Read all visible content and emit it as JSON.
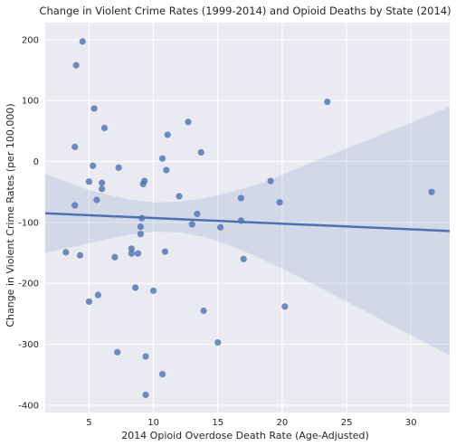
{
  "chart_data": {
    "type": "scatter",
    "title": "Change in Violent Crime Rates (1999-2014) and Opioid Deaths by State (2014)",
    "xlabel": "2014 Opioid Overdose Death Rate (Age-Adjusted)",
    "ylabel": "Change in Violent Crime Rates (per 100,000)",
    "xlim": [
      1.6,
      33.0
    ],
    "ylim": [
      -412,
      228
    ],
    "xticks": [
      5,
      10,
      15,
      20,
      25,
      30
    ],
    "yticks": [
      -400,
      -300,
      -200,
      -100,
      0,
      100,
      200
    ],
    "grid": true,
    "colors": {
      "background": "#eaeaf2",
      "grid": "#ffffff",
      "points": "#4c72b0",
      "line": "#4c72b0",
      "band": "#4c72b0"
    },
    "points": [
      {
        "x": 4.5,
        "y": 197
      },
      {
        "x": 4.0,
        "y": 158
      },
      {
        "x": 5.4,
        "y": 87
      },
      {
        "x": 6.2,
        "y": 55
      },
      {
        "x": 3.9,
        "y": 24
      },
      {
        "x": 5.3,
        "y": -7
      },
      {
        "x": 7.3,
        "y": -10
      },
      {
        "x": 5.0,
        "y": -33
      },
      {
        "x": 6.0,
        "y": -35
      },
      {
        "x": 6.0,
        "y": -45
      },
      {
        "x": 5.6,
        "y": -63
      },
      {
        "x": 3.9,
        "y": -72
      },
      {
        "x": 9.3,
        "y": -32
      },
      {
        "x": 9.2,
        "y": -37
      },
      {
        "x": 10.7,
        "y": 5
      },
      {
        "x": 11.1,
        "y": 44
      },
      {
        "x": 12.7,
        "y": 65
      },
      {
        "x": 13.7,
        "y": 15
      },
      {
        "x": 11.0,
        "y": -14
      },
      {
        "x": 12.0,
        "y": -57
      },
      {
        "x": 13.4,
        "y": -86
      },
      {
        "x": 9.1,
        "y": -93
      },
      {
        "x": 13.0,
        "y": -103
      },
      {
        "x": 9.0,
        "y": -107
      },
      {
        "x": 9.0,
        "y": -119
      },
      {
        "x": 8.3,
        "y": -143
      },
      {
        "x": 8.3,
        "y": -151
      },
      {
        "x": 8.8,
        "y": -151
      },
      {
        "x": 7.0,
        "y": -157
      },
      {
        "x": 10.9,
        "y": -148
      },
      {
        "x": 3.2,
        "y": -149
      },
      {
        "x": 4.3,
        "y": -154
      },
      {
        "x": 8.6,
        "y": -207
      },
      {
        "x": 10.0,
        "y": -212
      },
      {
        "x": 5.7,
        "y": -219
      },
      {
        "x": 5.0,
        "y": -230
      },
      {
        "x": 13.9,
        "y": -245
      },
      {
        "x": 7.2,
        "y": -313
      },
      {
        "x": 9.4,
        "y": -320
      },
      {
        "x": 15.0,
        "y": -297
      },
      {
        "x": 10.7,
        "y": -349
      },
      {
        "x": 9.4,
        "y": -383
      },
      {
        "x": 16.8,
        "y": -60
      },
      {
        "x": 16.8,
        "y": -97
      },
      {
        "x": 15.2,
        "y": -108
      },
      {
        "x": 17.0,
        "y": -160
      },
      {
        "x": 19.1,
        "y": -32
      },
      {
        "x": 19.8,
        "y": -67
      },
      {
        "x": 20.2,
        "y": -238
      },
      {
        "x": 23.5,
        "y": 98
      },
      {
        "x": 31.6,
        "y": -50
      }
    ],
    "regression": {
      "x": [
        1.6,
        33.0
      ],
      "y": [
        -85,
        -114
      ]
    },
    "ci_band": [
      {
        "x": 1.6,
        "low": -150,
        "high": -20
      },
      {
        "x": 5.0,
        "low": -134,
        "high": -47
      },
      {
        "x": 8.0,
        "low": -120,
        "high": -62
      },
      {
        "x": 10.0,
        "low": -115,
        "high": -67
      },
      {
        "x": 12.0,
        "low": -116,
        "high": -66
      },
      {
        "x": 14.0,
        "low": -124,
        "high": -60
      },
      {
        "x": 16.0,
        "low": -138,
        "high": -50
      },
      {
        "x": 18.0,
        "low": -156,
        "high": -38
      },
      {
        "x": 20.0,
        "low": -176,
        "high": -22
      },
      {
        "x": 23.0,
        "low": -208,
        "high": 5
      },
      {
        "x": 26.0,
        "low": -241,
        "high": 30
      },
      {
        "x": 29.0,
        "low": -274,
        "high": 55
      },
      {
        "x": 33.0,
        "low": -318,
        "high": 90
      }
    ]
  }
}
